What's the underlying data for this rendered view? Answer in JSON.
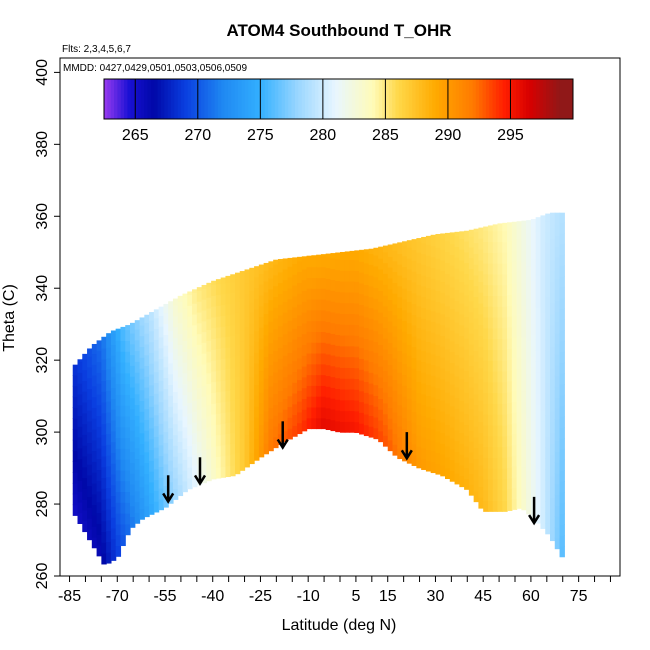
{
  "chart_data": {
    "type": "heatmap",
    "title": "ATOM4 Southbound T_OHR",
    "info_lines": [
      "Flts: 2,3,4,5,6,7",
      "MMDD: 0427,0429,0501,0503,0506,0509"
    ],
    "xlabel": "Latitude (deg N)",
    "ylabel": "Theta (C)",
    "xlim": [
      -88,
      88
    ],
    "ylim": [
      260,
      404
    ],
    "x_ticks": [
      -85,
      -70,
      -55,
      -40,
      -25,
      -10,
      5,
      15,
      30,
      45,
      60,
      75
    ],
    "x_minor_step": 5,
    "y_ticks": [
      260,
      280,
      300,
      320,
      340,
      360,
      380,
      400
    ],
    "colorbar": {
      "label_ticks": [
        265,
        270,
        275,
        280,
        285,
        290,
        295
      ],
      "range": [
        262.5,
        300
      ],
      "stops": [
        {
          "v": 262.5,
          "c": "#9a3cf0"
        },
        {
          "v": 264.5,
          "c": "#1a10d4"
        },
        {
          "v": 266.5,
          "c": "#0008a8"
        },
        {
          "v": 269,
          "c": "#0a3ee0"
        },
        {
          "v": 272,
          "c": "#1f88f2"
        },
        {
          "v": 275,
          "c": "#33b0ff"
        },
        {
          "v": 278,
          "c": "#9ad6ff"
        },
        {
          "v": 281,
          "c": "#e8f6ff"
        },
        {
          "v": 284,
          "c": "#fffbb8"
        },
        {
          "v": 286,
          "c": "#ffd84a"
        },
        {
          "v": 289,
          "c": "#ffaa00"
        },
        {
          "v": 292,
          "c": "#ff7a00"
        },
        {
          "v": 294.5,
          "c": "#ff1e00"
        },
        {
          "v": 296.5,
          "c": "#d80000"
        },
        {
          "v": 299,
          "c": "#901818"
        }
      ]
    },
    "surface_boundary": {
      "lower": [
        [
          -84,
          278
        ],
        [
          -78,
          269
        ],
        [
          -74,
          263
        ],
        [
          -70,
          265
        ],
        [
          -66,
          273
        ],
        [
          -62,
          276
        ],
        [
          -55,
          279
        ],
        [
          -48,
          284
        ],
        [
          -40,
          287
        ],
        [
          -33,
          288
        ],
        [
          -25,
          293
        ],
        [
          -18,
          297
        ],
        [
          -10,
          301
        ],
        [
          -5,
          301
        ],
        [
          0,
          300
        ],
        [
          5,
          300
        ],
        [
          12,
          298
        ],
        [
          18,
          293
        ],
        [
          25,
          290
        ],
        [
          32,
          288
        ],
        [
          40,
          284
        ],
        [
          45,
          278
        ],
        [
          52,
          278
        ],
        [
          57,
          279
        ],
        [
          61,
          276
        ],
        [
          66,
          271
        ],
        [
          70,
          265
        ]
      ],
      "upper": [
        [
          -84,
          318
        ],
        [
          -78,
          324
        ],
        [
          -72,
          328
        ],
        [
          -66,
          330
        ],
        [
          -58,
          334
        ],
        [
          -50,
          338
        ],
        [
          -40,
          342
        ],
        [
          -30,
          345
        ],
        [
          -20,
          348
        ],
        [
          -10,
          349
        ],
        [
          0,
          350
        ],
        [
          10,
          351
        ],
        [
          20,
          353
        ],
        [
          30,
          355
        ],
        [
          40,
          356
        ],
        [
          50,
          358
        ],
        [
          60,
          359
        ],
        [
          66,
          361
        ],
        [
          70,
          361
        ]
      ]
    },
    "temperature_profile": [
      {
        "lat": -85,
        "t_low": 265,
        "t_high": 268
      },
      {
        "lat": -75,
        "t_low": 266,
        "t_high": 271
      },
      {
        "lat": -68,
        "t_low": 270,
        "t_high": 276
      },
      {
        "lat": -60,
        "t_low": 274,
        "t_high": 279
      },
      {
        "lat": -52,
        "t_low": 278,
        "t_high": 283
      },
      {
        "lat": -45,
        "t_low": 281,
        "t_high": 285
      },
      {
        "lat": -38,
        "t_low": 284,
        "t_high": 286
      },
      {
        "lat": -30,
        "t_low": 287,
        "t_high": 287
      },
      {
        "lat": -22,
        "t_low": 292,
        "t_high": 288
      },
      {
        "lat": -12,
        "t_low": 294,
        "t_high": 289
      },
      {
        "lat": -5,
        "t_low": 296,
        "t_high": 289
      },
      {
        "lat": 5,
        "t_low": 295,
        "t_high": 289
      },
      {
        "lat": 15,
        "t_low": 293,
        "t_high": 288
      },
      {
        "lat": 25,
        "t_low": 290,
        "t_high": 287
      },
      {
        "lat": 35,
        "t_low": 289,
        "t_high": 286
      },
      {
        "lat": 45,
        "t_low": 288,
        "t_high": 285
      },
      {
        "lat": 52,
        "t_low": 286,
        "t_high": 284
      },
      {
        "lat": 58,
        "t_low": 283,
        "t_high": 282
      },
      {
        "lat": 64,
        "t_low": 280,
        "t_high": 280
      },
      {
        "lat": 70,
        "t_low": 276,
        "t_high": 279
      }
    ],
    "arrows": [
      {
        "lat": -54,
        "top": 288,
        "bottom": 281
      },
      {
        "lat": -44,
        "top": 293,
        "bottom": 286
      },
      {
        "lat": -18,
        "top": 303,
        "bottom": 296
      },
      {
        "lat": 21,
        "top": 300,
        "bottom": 293
      },
      {
        "lat": 61,
        "top": 282,
        "bottom": 275
      }
    ]
  }
}
